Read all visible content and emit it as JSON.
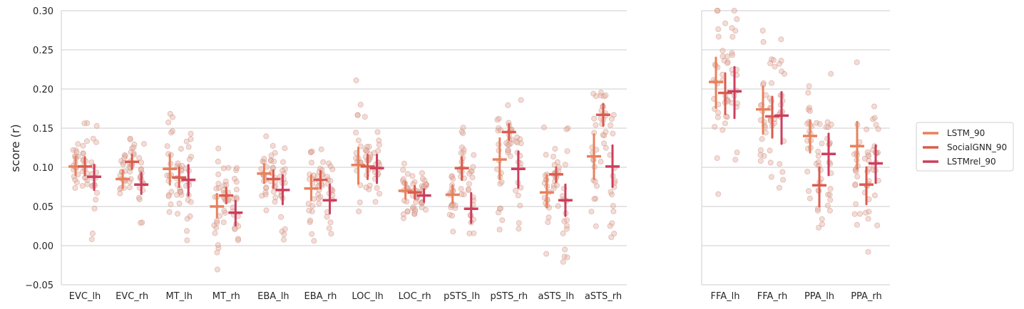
{
  "chart_data": [
    {
      "type": "scatter",
      "ylabel": "score (r)",
      "ylim": [
        -0.05,
        0.3
      ],
      "yticks": [
        "−0.05",
        "0.00",
        "0.05",
        "0.10",
        "0.15",
        "0.20",
        "0.25",
        "0.30"
      ],
      "ytick_values": [
        -0.05,
        0.0,
        0.05,
        0.1,
        0.15,
        0.2,
        0.25,
        0.3
      ],
      "grid": "horizontal",
      "categories": [
        "EVC_lh",
        "EVC_rh",
        "MT_lh",
        "MT_rh",
        "EBA_lh",
        "EBA_rh",
        "LOC_lh",
        "LOC_rh",
        "pSTS_lh",
        "pSTS_rh",
        "aSTS_lh",
        "aSTS_rh"
      ],
      "series": [
        {
          "name": "LSTM_90",
          "values": [
            0.101,
            0.085,
            0.098,
            0.05,
            0.092,
            0.073,
            0.103,
            0.07,
            0.065,
            0.11,
            0.068,
            0.114
          ],
          "ci": [
            [
              0.09,
              0.113
            ],
            [
              0.074,
              0.096
            ],
            [
              0.078,
              0.116
            ],
            [
              0.036,
              0.066
            ],
            [
              0.08,
              0.104
            ],
            [
              0.058,
              0.09
            ],
            [
              0.079,
              0.125
            ],
            [
              0.06,
              0.081
            ],
            [
              0.054,
              0.077
            ],
            [
              0.085,
              0.137
            ],
            [
              0.049,
              0.09
            ],
            [
              0.085,
              0.142
            ]
          ]
        },
        {
          "name": "SocialGNN_90",
          "values": [
            0.101,
            0.107,
            0.087,
            0.064,
            0.085,
            0.084,
            0.101,
            0.068,
            0.099,
            0.145,
            0.091,
            0.167
          ],
          "ci": [
            [
              0.09,
              0.113
            ],
            [
              0.098,
              0.116
            ],
            [
              0.075,
              0.1
            ],
            [
              0.054,
              0.074
            ],
            [
              0.074,
              0.096
            ],
            [
              0.073,
              0.095
            ],
            [
              0.085,
              0.116
            ],
            [
              0.06,
              0.076
            ],
            [
              0.084,
              0.113
            ],
            [
              0.135,
              0.155
            ],
            [
              0.081,
              0.1
            ],
            [
              0.153,
              0.181
            ]
          ]
        },
        {
          "name": "LSTMrel_90",
          "values": [
            0.088,
            0.078,
            0.084,
            0.042,
            0.071,
            0.058,
            0.099,
            0.064,
            0.047,
            0.098,
            0.058,
            0.101
          ],
          "ci": [
            [
              0.071,
              0.103
            ],
            [
              0.066,
              0.093
            ],
            [
              0.064,
              0.103
            ],
            [
              0.026,
              0.057
            ],
            [
              0.053,
              0.09
            ],
            [
              0.041,
              0.078
            ],
            [
              0.08,
              0.116
            ],
            [
              0.056,
              0.072
            ],
            [
              0.029,
              0.067
            ],
            [
              0.074,
              0.12
            ],
            [
              0.038,
              0.078
            ],
            [
              0.075,
              0.128
            ]
          ]
        }
      ]
    },
    {
      "type": "scatter",
      "ylabel": "",
      "ylim": [
        -0.05,
        0.3
      ],
      "grid": "horizontal",
      "categories": [
        "FFA_lh",
        "FFA_rh",
        "PPA_lh",
        "PPA_rh"
      ],
      "series": [
        {
          "name": "LSTM_90",
          "values": [
            0.209,
            0.174,
            0.14,
            0.127
          ],
          "ci": [
            [
              0.176,
              0.24
            ],
            [
              0.143,
              0.203
            ],
            [
              0.119,
              0.16
            ],
            [
              0.098,
              0.158
            ]
          ]
        },
        {
          "name": "SocialGNN_90",
          "values": [
            0.195,
            0.165,
            0.077,
            0.078
          ],
          "ci": [
            [
              0.168,
              0.22
            ],
            [
              0.138,
              0.19
            ],
            [
              0.05,
              0.1
            ],
            [
              0.053,
              0.1
            ]
          ]
        },
        {
          "name": "LSTMrel_90",
          "values": [
            0.197,
            0.166,
            0.117,
            0.105
          ],
          "ci": [
            [
              0.163,
              0.228
            ],
            [
              0.13,
              0.196
            ],
            [
              0.09,
              0.143
            ],
            [
              0.08,
              0.128
            ]
          ]
        }
      ]
    }
  ],
  "legend": {
    "position": "right",
    "entries": [
      "LSTM_90",
      "SocialGNN_90",
      "LSTMrel_90"
    ]
  },
  "colors": {
    "series": [
      "#e8815c",
      "#db5c4f",
      "#cc3f5d"
    ],
    "points_fill": "#e7b1a2",
    "points_stroke": "#c58a80",
    "grid": "#cccccc",
    "axis": "#cccccc",
    "text": "#262626"
  }
}
